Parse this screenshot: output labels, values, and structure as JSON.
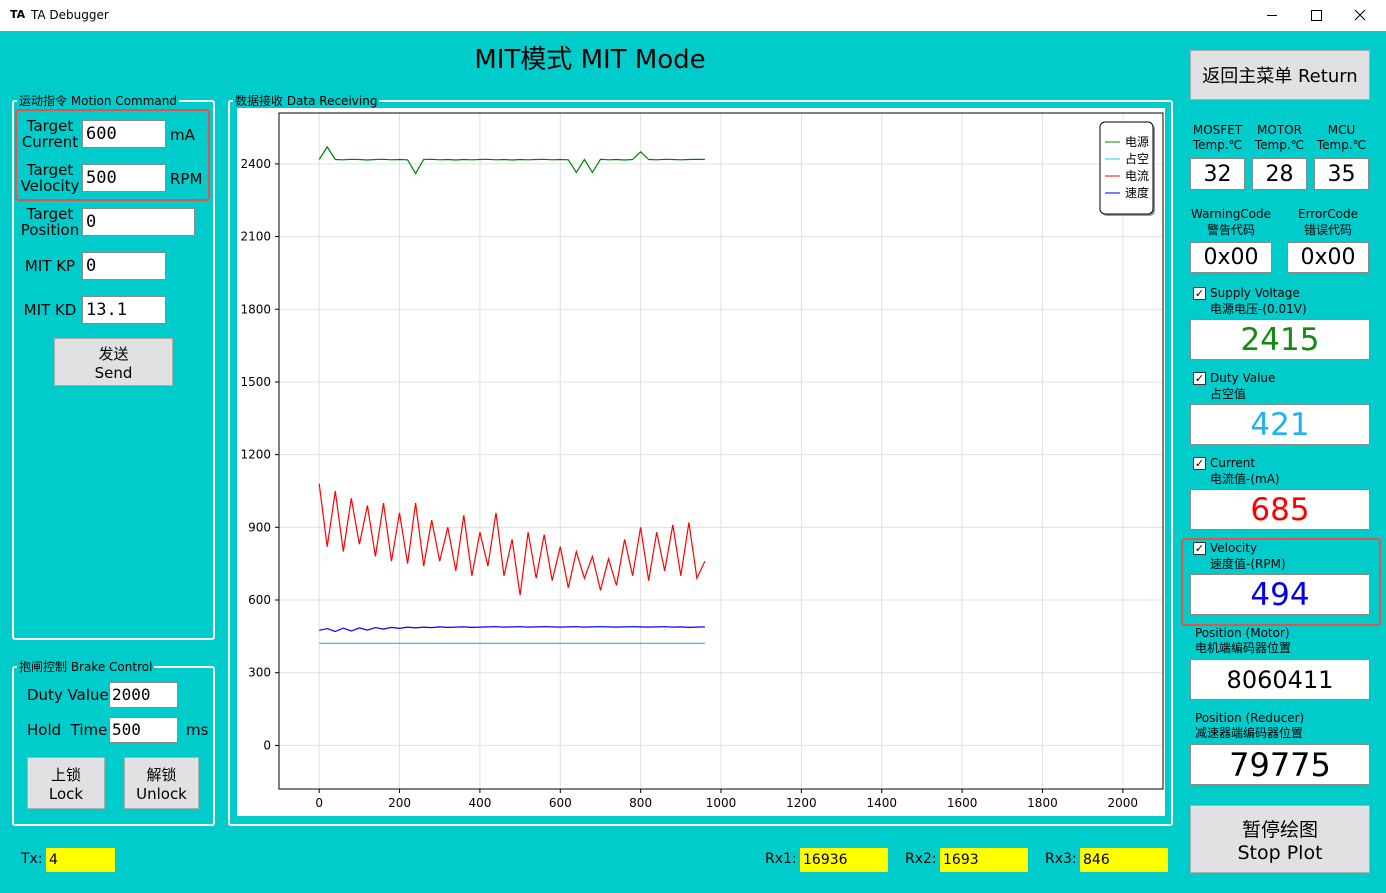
{
  "window": {
    "icon": "TA",
    "title": "TA Debugger"
  },
  "header": {
    "title": "MIT模式 MIT Mode"
  },
  "motion_command": {
    "title": "运动指令 Motion Command",
    "fields": [
      {
        "label": "Target Current",
        "value": 600,
        "unit": "mA"
      },
      {
        "label": "Target Velocity",
        "value": 500,
        "unit": "RPM"
      },
      {
        "label": "Target Position",
        "value": 0
      },
      {
        "label": "MIT KP",
        "value": 0
      },
      {
        "label": "MIT KD",
        "value": 13.1
      }
    ],
    "button": [
      "发送",
      "Send"
    ]
  },
  "brake_control": {
    "title": "抱闸控制 Brake Control",
    "fields": [
      {
        "label": "Duty Value:",
        "value": 2000
      },
      {
        "label": "Hold  Time:",
        "value": 500,
        "unit": "ms"
      }
    ],
    "buttons": [
      [
        "上锁",
        "Lock"
      ],
      [
        "解锁",
        "Unlock"
      ]
    ]
  },
  "data_receiving": {
    "title": "数据接收 Data Receiving"
  },
  "chart_data": {
    "type": "line",
    "grid": true,
    "legend": "top-right",
    "xlim": [
      -100,
      2100
    ],
    "ylim": [
      -180,
      2610
    ],
    "xticks": [
      0,
      200,
      400,
      600,
      800,
      1000,
      1200,
      1400,
      1600,
      1800,
      2000
    ],
    "yticks": [
      0,
      300,
      600,
      900,
      1200,
      1500,
      1800,
      2100,
      2400
    ],
    "x": [
      0,
      20,
      40,
      60,
      80,
      100,
      120,
      140,
      160,
      180,
      200,
      220,
      240,
      260,
      280,
      300,
      320,
      340,
      360,
      380,
      400,
      420,
      440,
      460,
      480,
      500,
      520,
      540,
      560,
      580,
      600,
      620,
      640,
      660,
      680,
      700,
      720,
      740,
      760,
      780,
      800,
      820,
      840,
      860,
      880,
      900,
      920,
      940,
      960
    ],
    "series": [
      {
        "name": "电源",
        "color": "#008000",
        "values": [
          2418,
          2470,
          2418,
          2417,
          2419,
          2418,
          2416,
          2418,
          2419,
          2417,
          2418,
          2417,
          2360,
          2418,
          2419,
          2417,
          2418,
          2416,
          2418,
          2417,
          2418,
          2419,
          2417,
          2418,
          2416,
          2418,
          2417,
          2418,
          2419,
          2417,
          2418,
          2417,
          2365,
          2418,
          2365,
          2419,
          2417,
          2418,
          2416,
          2418,
          2450,
          2418,
          2417,
          2419,
          2418,
          2417,
          2418,
          2419,
          2418
        ]
      },
      {
        "name": "占空",
        "color": "#1ec8f0",
        "values": [
          421,
          421,
          421,
          421,
          421,
          421,
          421,
          421,
          421,
          421,
          421,
          421,
          421,
          421,
          421,
          421,
          421,
          421,
          421,
          421,
          421,
          421,
          421,
          421,
          421,
          421,
          421,
          421,
          421,
          421,
          421,
          421,
          421,
          421,
          421,
          421,
          421,
          421,
          421,
          421,
          421,
          421,
          421,
          421,
          421,
          421,
          421,
          421,
          421
        ]
      },
      {
        "name": "电流",
        "color": "#ff0000",
        "values": [
          1080,
          820,
          1050,
          800,
          1020,
          830,
          990,
          780,
          1000,
          760,
          960,
          750,
          1000,
          740,
          930,
          760,
          900,
          720,
          950,
          700,
          880,
          740,
          960,
          700,
          850,
          620,
          880,
          690,
          870,
          680,
          820,
          650,
          800,
          690,
          780,
          640,
          770,
          660,
          850,
          700,
          900,
          680,
          880,
          720,
          910,
          700,
          920,
          690,
          760
        ]
      },
      {
        "name": "速度",
        "color": "#0000ff",
        "values": [
          475,
          482,
          470,
          484,
          472,
          485,
          476,
          486,
          480,
          487,
          483,
          488,
          485,
          488,
          486,
          489,
          487,
          488,
          489,
          487,
          488,
          489,
          490,
          488,
          489,
          490,
          488,
          489,
          490,
          489,
          488,
          489,
          490,
          488,
          489,
          490,
          489,
          488,
          489,
          490,
          489,
          488,
          489,
          490,
          488,
          489,
          487,
          488,
          489
        ]
      }
    ]
  },
  "right_panel": {
    "return_button": "返回主菜单 Return",
    "temps": [
      {
        "label": [
          "MOSFET",
          "Temp.℃"
        ],
        "value": 32
      },
      {
        "label": [
          "MOTOR",
          "Temp.℃"
        ],
        "value": 28
      },
      {
        "label": [
          "MCU",
          "Temp.℃"
        ],
        "value": 35
      }
    ],
    "codes": [
      {
        "label": [
          "WarningCode",
          "警告代码"
        ],
        "value": "0x00"
      },
      {
        "label": [
          "ErrorCode",
          "错误代码"
        ],
        "value": "0x00"
      }
    ],
    "readouts": [
      {
        "label": [
          "Supply Voltage",
          "电源电压-(0.01V)"
        ],
        "checked": true,
        "value": 2415,
        "color": "#138a13"
      },
      {
        "label": [
          "Duty Value",
          "占空值"
        ],
        "checked": true,
        "value": 421,
        "color": "#1fb4ef"
      },
      {
        "label": [
          "Current",
          "电流值-(mA)"
        ],
        "checked": true,
        "value": 685,
        "color": "#ff0000"
      },
      {
        "label": [
          "Velocity",
          "速度值-(RPM)"
        ],
        "checked": true,
        "value": 494,
        "color": "#0000ee"
      }
    ],
    "positions": [
      {
        "label": [
          "Position (Motor)",
          "电机端编码器位置"
        ],
        "value": 8060411
      },
      {
        "label": [
          "Position (Reducer)",
          "减速器端编码器位置"
        ],
        "value": 79775
      }
    ],
    "stop_button": [
      "暂停绘图",
      "Stop Plot"
    ]
  },
  "status": {
    "tx": {
      "label": "Tx:",
      "value": 4
    },
    "rx": [
      {
        "label": "Rx1:",
        "value": 16936
      },
      {
        "label": "Rx2:",
        "value": 1693
      },
      {
        "label": "Rx3:",
        "value": 846
      }
    ]
  }
}
